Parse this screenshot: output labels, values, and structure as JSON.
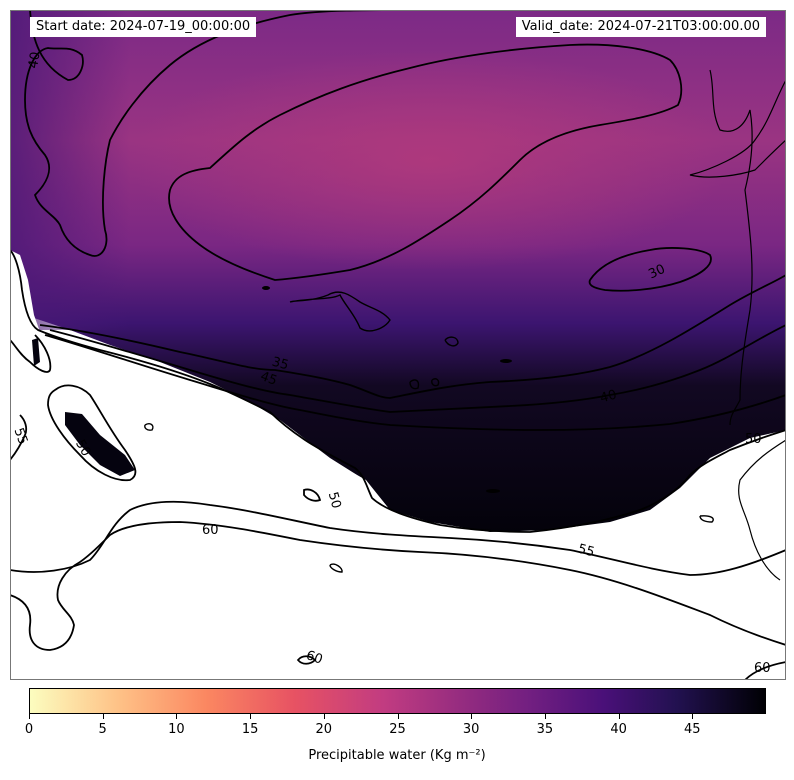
{
  "header": {
    "start_date": "Start date: 2024-07-19_00:00:00",
    "valid_date": "Valid_date: 2024-07-21T03:00:00.00"
  },
  "colorbar": {
    "label": "Precipitable water (Kg m⁻²)",
    "ticks": [
      "0",
      "5",
      "10",
      "15",
      "20",
      "25",
      "30",
      "35",
      "40",
      "45"
    ],
    "colormap": "magma_r",
    "range": [
      0,
      50
    ]
  },
  "contour_labels": [
    "40",
    "30",
    "35",
    "45",
    "40",
    "55",
    "50",
    "50",
    "60",
    "55",
    "60",
    "60",
    "50"
  ],
  "colors": {
    "purple_high": "#a8367f",
    "purple_mid": "#6d2381",
    "dark": "#1a0a30",
    "black": "#05030f"
  }
}
